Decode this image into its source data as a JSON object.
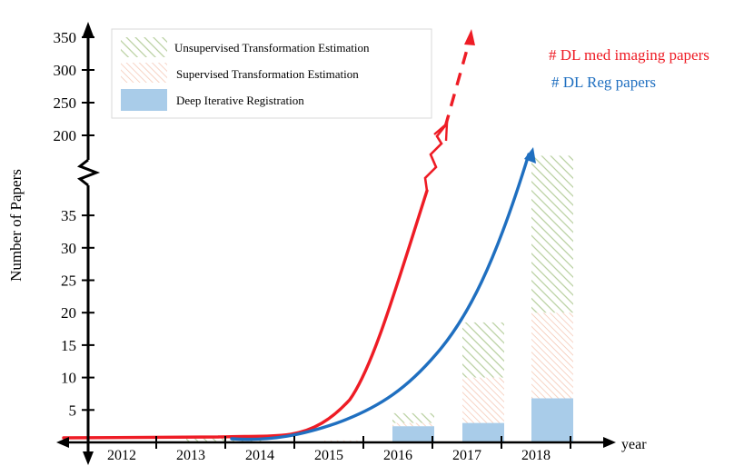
{
  "chart_data": {
    "type": "bar",
    "ylabel": "Number of Papers",
    "xlabel": "year",
    "categories": [
      "2012",
      "2013",
      "2014",
      "2015",
      "2016",
      "2017",
      "2018"
    ],
    "y_ticks_lower": [
      "5",
      "10",
      "15",
      "20",
      "25",
      "30",
      "35"
    ],
    "y_ticks_upper": [
      "200",
      "250",
      "300",
      "350"
    ],
    "axis_break": {
      "lower_max": 38,
      "upper_min": 200
    },
    "stacked": true,
    "series": [
      {
        "name": "Deep Iterative Registration",
        "values": [
          0,
          0,
          0,
          0,
          2.5,
          3,
          6.8
        ],
        "color": "#a9cce9",
        "pattern": "solid"
      },
      {
        "name": "Supervised Transformation Estimation",
        "values": [
          0,
          0,
          0,
          0.3,
          0.5,
          7,
          13.2
        ],
        "color": "#f2b9a0",
        "pattern": "hatch"
      },
      {
        "name": "Unsupervised Transformation Estimation",
        "values": [
          0,
          0.8,
          0.8,
          0,
          1.5,
          8.5,
          24.2
        ],
        "color": "#b7cf9e",
        "pattern": "hatch"
      }
    ],
    "trend_lines": [
      {
        "name": "# DL med imaging papers",
        "color": "#ee1c25"
      },
      {
        "name": "# DL Reg papers",
        "color": "#1f6fc0"
      }
    ],
    "legend_position": "top-left"
  }
}
